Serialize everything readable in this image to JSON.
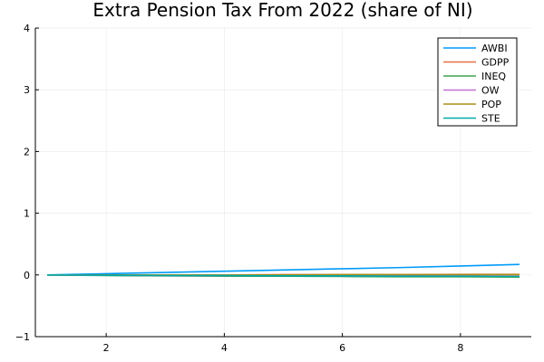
{
  "chart_data": {
    "type": "line",
    "title": "Extra Pension Tax From 2022 (share of NI)",
    "xlabel": "",
    "ylabel": "",
    "xlim": [
      0.8,
      9.2
    ],
    "ylim": [
      -1,
      4
    ],
    "xticks": [
      2,
      4,
      6,
      8
    ],
    "yticks": [
      -1,
      0,
      1,
      2,
      3,
      4
    ],
    "grid": true,
    "legend_position": "top-right",
    "x": [
      1,
      2,
      3,
      4,
      5,
      6,
      7,
      8,
      9
    ],
    "series": [
      {
        "name": "AWBI",
        "color": "#009AFA",
        "values": [
          0.0,
          0.02,
          0.04,
          0.06,
          0.08,
          0.1,
          0.12,
          0.145,
          0.17
        ]
      },
      {
        "name": "GDPP",
        "color": "#E36F47",
        "values": [
          0.0,
          0.0,
          0.0,
          0.0,
          0.005,
          0.005,
          0.005,
          0.01,
          0.01
        ]
      },
      {
        "name": "INEQ",
        "color": "#3EA44E",
        "values": [
          0.0,
          -0.01,
          -0.015,
          -0.02,
          -0.02,
          -0.025,
          -0.03,
          -0.03,
          -0.035
        ]
      },
      {
        "name": "OW",
        "color": "#C371D2",
        "values": [
          0.0,
          -0.005,
          -0.01,
          -0.01,
          -0.01,
          -0.015,
          -0.015,
          -0.015,
          -0.02
        ]
      },
      {
        "name": "POP",
        "color": "#AC8D18",
        "values": [
          0.0,
          0.0,
          0.0,
          0.0,
          0.0,
          0.005,
          0.005,
          0.005,
          0.005
        ]
      },
      {
        "name": "STE",
        "color": "#00A9AD",
        "values": [
          0.0,
          -0.005,
          -0.01,
          -0.01,
          -0.015,
          -0.015,
          -0.02,
          -0.02,
          -0.025
        ]
      }
    ]
  }
}
